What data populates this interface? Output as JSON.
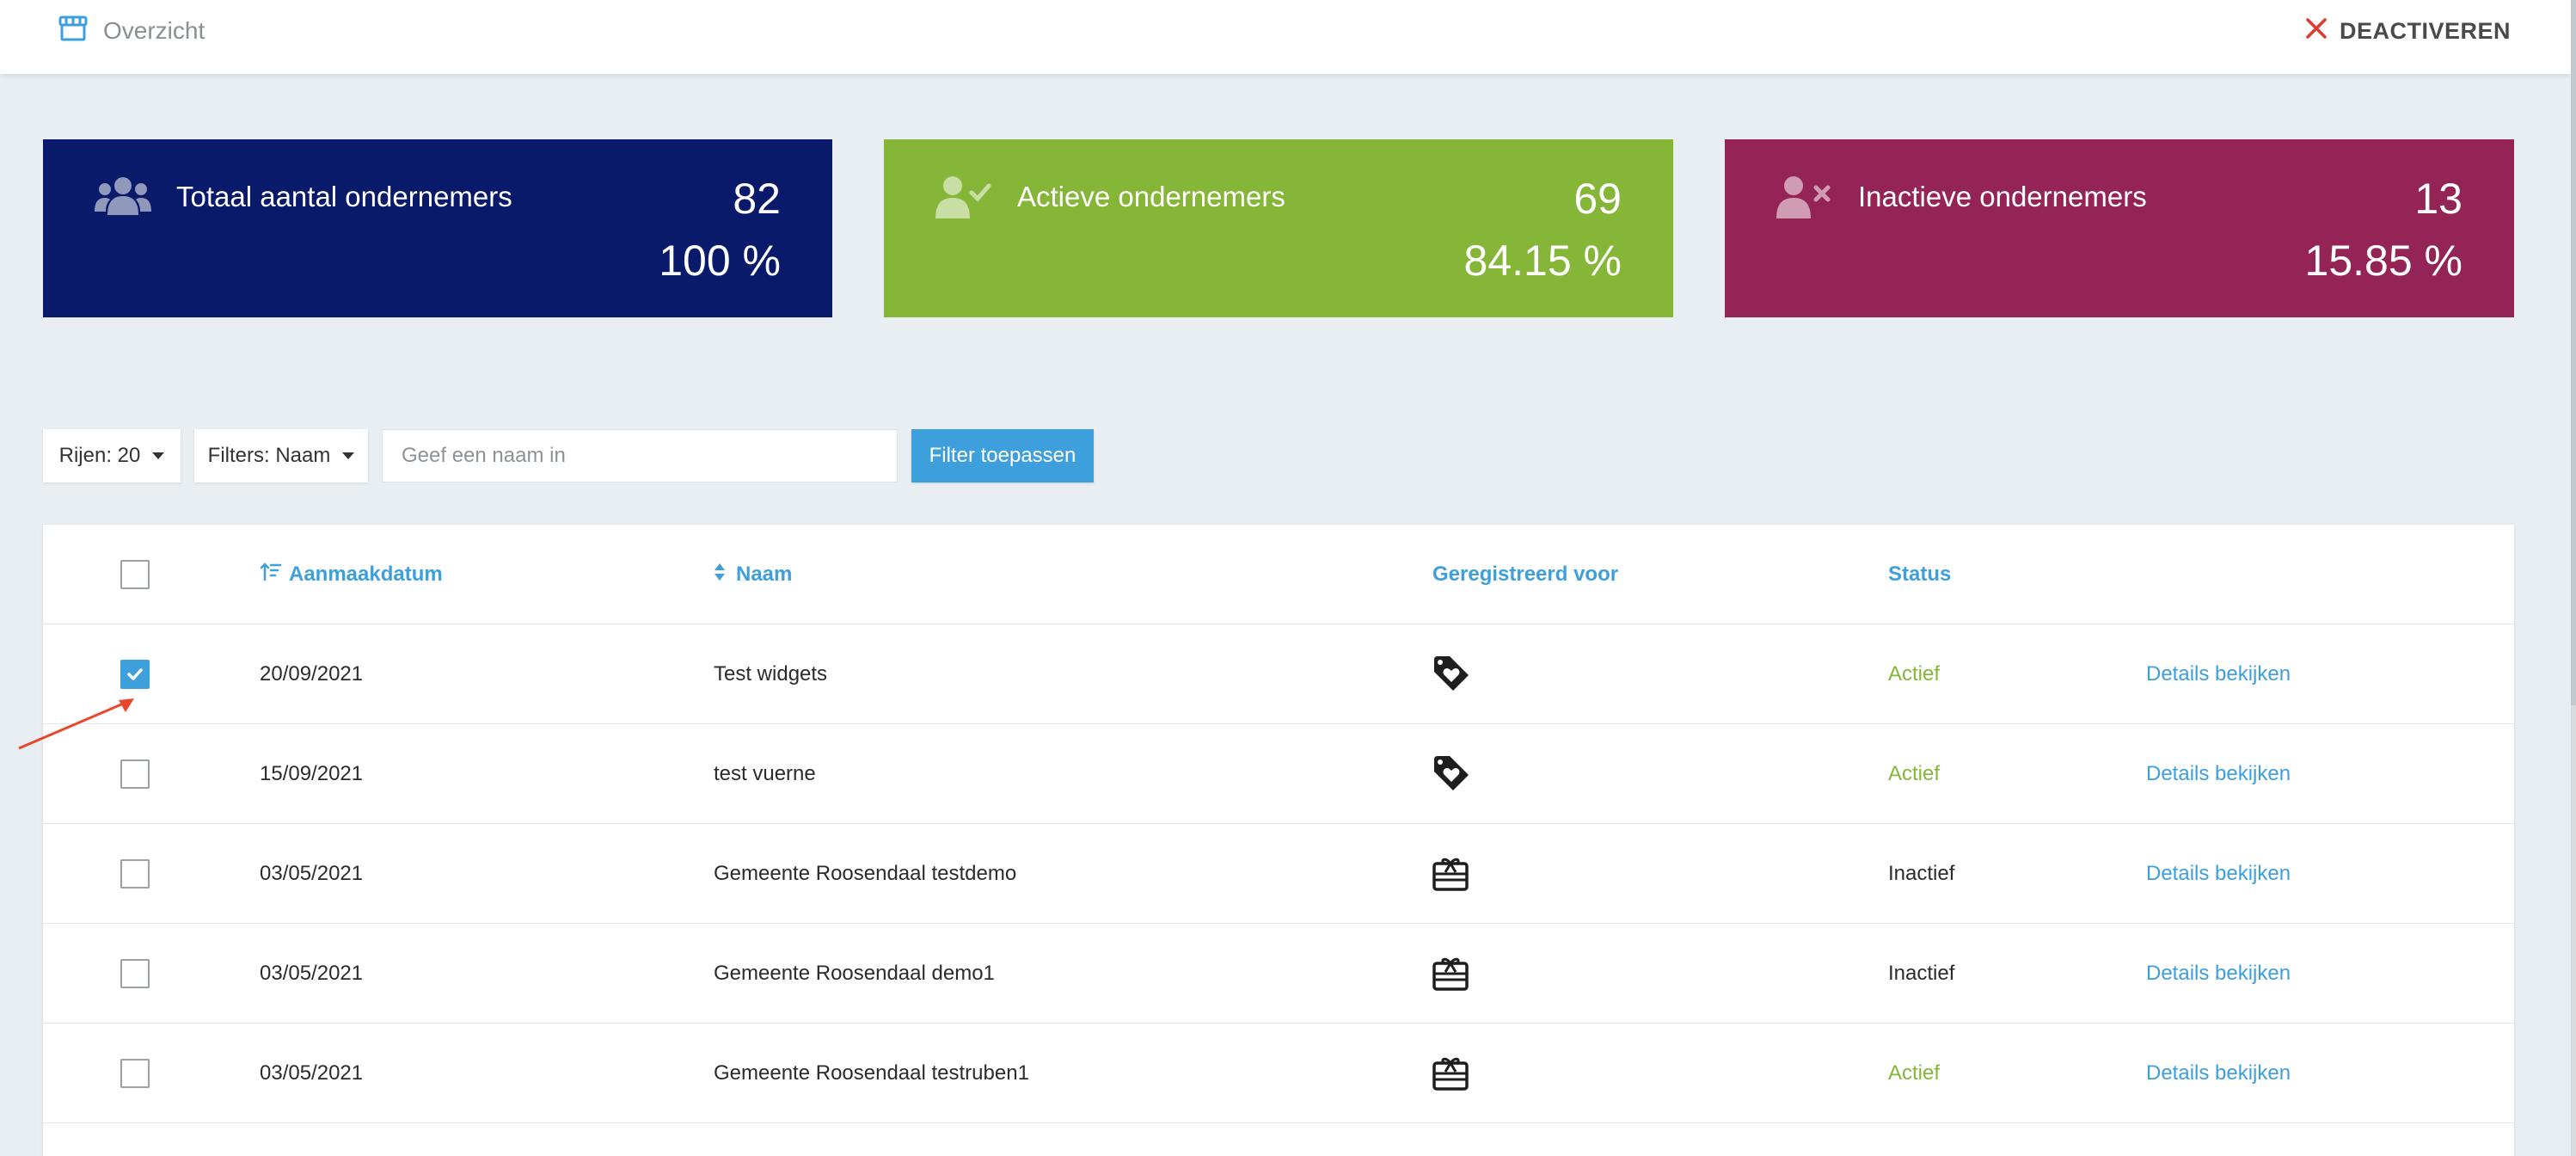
{
  "header": {
    "breadcrumb": "Overzicht",
    "breadcrumb_icon": "store-icon",
    "deactivate_label": "DEACTIVEREN",
    "deactivate_icon": "close-icon"
  },
  "stats": [
    {
      "label": "Totaal aantal ondernemers",
      "count": "82",
      "percent": "100 %",
      "icon": "users-icon",
      "color": "#0a1a6b"
    },
    {
      "label": "Actieve ondernemers",
      "count": "69",
      "percent": "84.15 %",
      "icon": "user-check-icon",
      "color": "#85b637"
    },
    {
      "label": "Inactieve ondernemers",
      "count": "13",
      "percent": "15.85 %",
      "icon": "user-times-icon",
      "color": "#952456"
    }
  ],
  "filters": {
    "rows_label": "Rijen: 20",
    "filter_label": "Filters: Naam",
    "search_placeholder": "Geef een naam in",
    "search_value": "",
    "apply_label": "Filter toepassen"
  },
  "table": {
    "headers": {
      "date": "Aanmaakdatum",
      "name": "Naam",
      "registered": "Geregistreerd voor",
      "status": "Status"
    },
    "rows": [
      {
        "date": "20/09/2021",
        "name": "Test widgets",
        "registered_icon": "tag-heart-icon",
        "status": "Actief",
        "action": "Details bekijken",
        "checked": true
      },
      {
        "date": "15/09/2021",
        "name": "test vuerne",
        "registered_icon": "tag-heart-icon",
        "status": "Actief",
        "action": "Details bekijken",
        "checked": false
      },
      {
        "date": "03/05/2021",
        "name": "Gemeente Roosendaal testdemo",
        "registered_icon": "gift-card-icon",
        "status": "Inactief",
        "action": "Details bekijken",
        "checked": false
      },
      {
        "date": "03/05/2021",
        "name": "Gemeente Roosendaal demo1",
        "registered_icon": "gift-card-icon",
        "status": "Inactief",
        "action": "Details bekijken",
        "checked": false
      },
      {
        "date": "03/05/2021",
        "name": "Gemeente Roosendaal testruben1",
        "registered_icon": "gift-card-icon",
        "status": "Actief",
        "action": "Details bekijken",
        "checked": false
      }
    ]
  },
  "colors": {
    "accent": "#3d9fdc",
    "active": "#85b637",
    "annotation_arrow": "#e8472b"
  }
}
